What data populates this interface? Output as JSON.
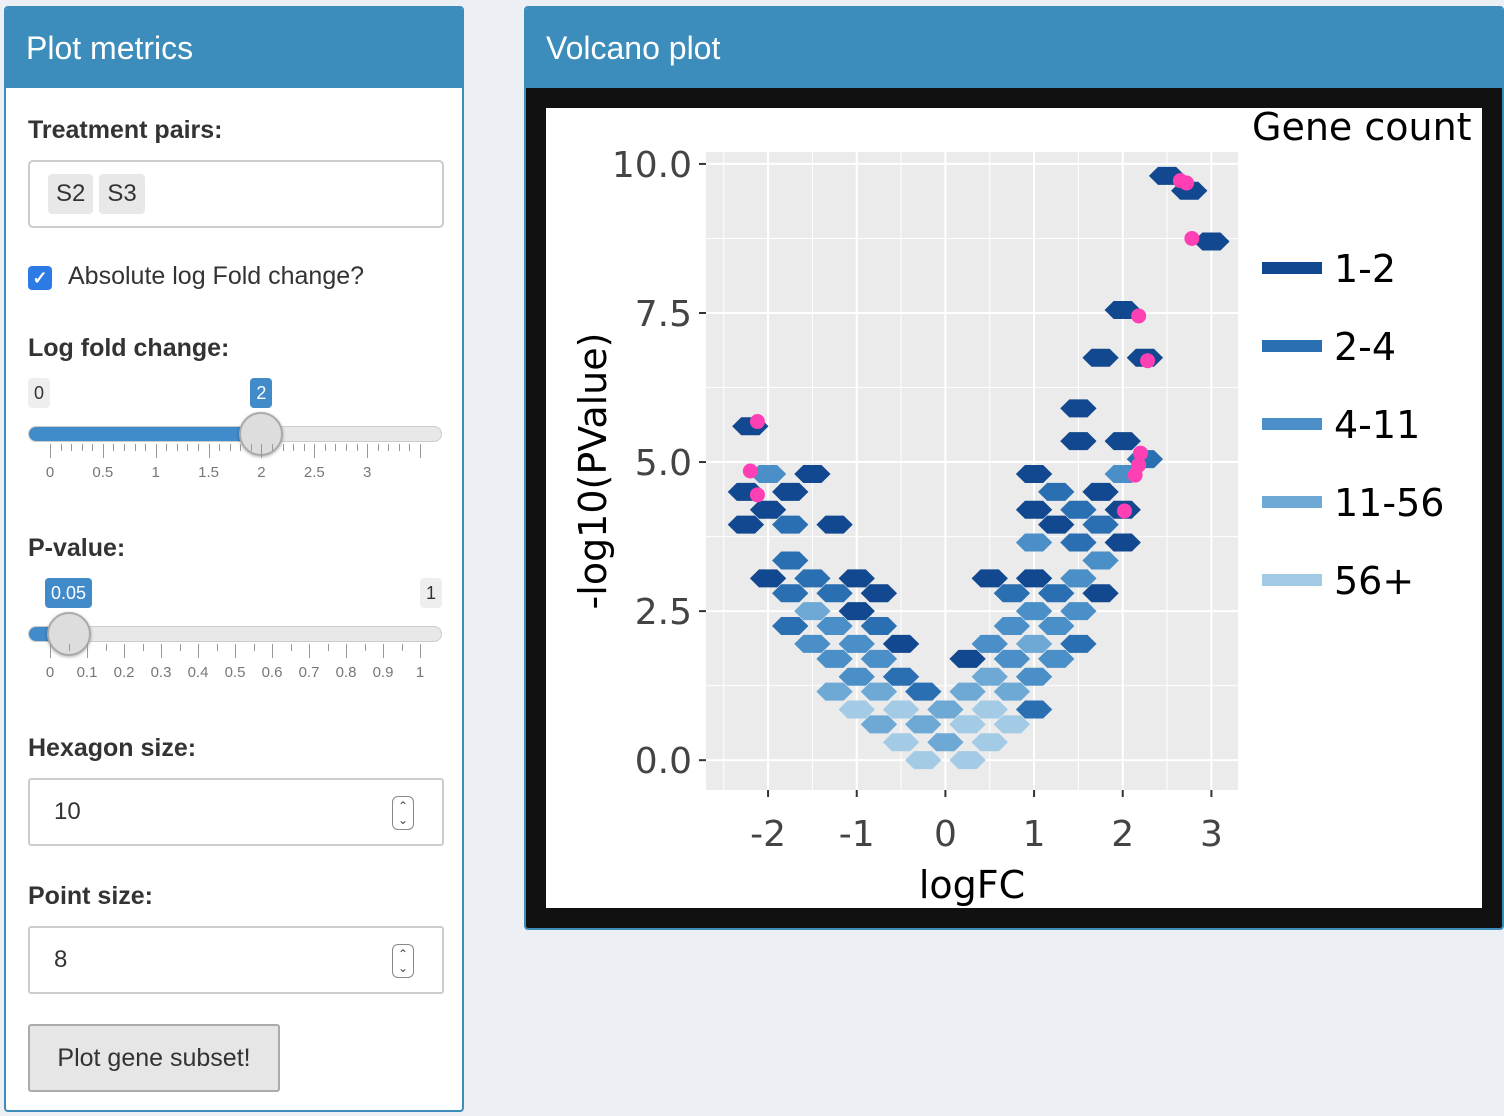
{
  "left_panel": {
    "title": "Plot metrics",
    "treatment_pairs": {
      "label": "Treatment pairs:",
      "selected": [
        "S2",
        "S3"
      ]
    },
    "absolute_lfc": {
      "label": "Absolute log Fold change?",
      "checked": true
    },
    "log_fold_change": {
      "label": "Log fold change:",
      "min_label": "0",
      "value_label": "2",
      "value": 2,
      "range": [
        0,
        3.5
      ],
      "tick_labels": [
        "0",
        "0.5",
        "1",
        "1.5",
        "2",
        "2.5",
        "3"
      ]
    },
    "p_value": {
      "label": "P-value:",
      "value_label": "0.05",
      "max_label": "1",
      "value": 0.05,
      "range": [
        0,
        1
      ],
      "tick_labels": [
        "0",
        "0.1",
        "0.2",
        "0.3",
        "0.4",
        "0.5",
        "0.6",
        "0.7",
        "0.8",
        "0.9",
        "1"
      ]
    },
    "hexagon_size": {
      "label": "Hexagon size:",
      "value": "10"
    },
    "point_size": {
      "label": "Point size:",
      "value": "8"
    },
    "plot_button": "Plot gene subset!"
  },
  "right_panel": {
    "title": "Volcano plot"
  },
  "chart_data": {
    "type": "hexbin-scatter",
    "xlabel": "logFC",
    "ylabel": "-log10(PValue)",
    "xlim": [
      -2.7,
      3.3
    ],
    "ylim": [
      -0.5,
      10.2
    ],
    "x_ticks": [
      "-2",
      "-1",
      "0",
      "1",
      "2",
      "3"
    ],
    "y_ticks": [
      "0.0",
      "2.5",
      "5.0",
      "7.5",
      "10.0"
    ],
    "grid": true,
    "legend": {
      "title": "Gene count",
      "placement": "right",
      "entries": [
        {
          "label": "1-2",
          "color": "#12488f"
        },
        {
          "label": "2-4",
          "color": "#2b6fb3"
        },
        {
          "label": "4-11",
          "color": "#4a8fc8"
        },
        {
          "label": "11-56",
          "color": "#6ea9d6"
        },
        {
          "label": "56+",
          "color": "#a4cbe6"
        }
      ]
    },
    "hexagons": [
      {
        "x": 2.5,
        "y": 9.8,
        "c": 0
      },
      {
        "x": 2.75,
        "y": 9.55,
        "c": 0
      },
      {
        "x": 3.0,
        "y": 8.7,
        "c": 0
      },
      {
        "x": 2.0,
        "y": 7.55,
        "c": 0
      },
      {
        "x": 1.75,
        "y": 6.75,
        "c": 0
      },
      {
        "x": 2.25,
        "y": 6.75,
        "c": 0
      },
      {
        "x": 1.5,
        "y": 5.9,
        "c": 0
      },
      {
        "x": 1.5,
        "y": 5.35,
        "c": 0
      },
      {
        "x": 2.0,
        "y": 5.35,
        "c": 0
      },
      {
        "x": 2.25,
        "y": 5.05,
        "c": 1
      },
      {
        "x": 2.0,
        "y": 4.8,
        "c": 2
      },
      {
        "x": 1.0,
        "y": 4.8,
        "c": 0
      },
      {
        "x": 1.25,
        "y": 4.5,
        "c": 1
      },
      {
        "x": 1.75,
        "y": 4.5,
        "c": 0
      },
      {
        "x": 1.0,
        "y": 4.2,
        "c": 0
      },
      {
        "x": 1.5,
        "y": 4.2,
        "c": 1
      },
      {
        "x": 2.0,
        "y": 4.2,
        "c": 0
      },
      {
        "x": 1.25,
        "y": 3.95,
        "c": 0
      },
      {
        "x": 1.75,
        "y": 3.95,
        "c": 1
      },
      {
        "x": 1.0,
        "y": 3.65,
        "c": 2
      },
      {
        "x": 1.5,
        "y": 3.65,
        "c": 1
      },
      {
        "x": 2.0,
        "y": 3.65,
        "c": 0
      },
      {
        "x": 1.75,
        "y": 3.35,
        "c": 2
      },
      {
        "x": 0.5,
        "y": 3.05,
        "c": 0
      },
      {
        "x": 1.0,
        "y": 3.05,
        "c": 0
      },
      {
        "x": 1.5,
        "y": 3.05,
        "c": 2
      },
      {
        "x": 0.75,
        "y": 2.8,
        "c": 1
      },
      {
        "x": 1.25,
        "y": 2.8,
        "c": 1
      },
      {
        "x": 1.75,
        "y": 2.8,
        "c": 0
      },
      {
        "x": 1.0,
        "y": 2.5,
        "c": 2
      },
      {
        "x": 1.5,
        "y": 2.5,
        "c": 2
      },
      {
        "x": 0.75,
        "y": 2.25,
        "c": 2
      },
      {
        "x": 1.25,
        "y": 2.25,
        "c": 2
      },
      {
        "x": 0.5,
        "y": 1.95,
        "c": 2
      },
      {
        "x": 1.0,
        "y": 1.95,
        "c": 3
      },
      {
        "x": 1.5,
        "y": 1.95,
        "c": 1
      },
      {
        "x": 0.25,
        "y": 1.7,
        "c": 0
      },
      {
        "x": 0.75,
        "y": 1.7,
        "c": 2
      },
      {
        "x": 1.25,
        "y": 1.7,
        "c": 2
      },
      {
        "x": 0.5,
        "y": 1.4,
        "c": 3
      },
      {
        "x": 1.0,
        "y": 1.4,
        "c": 2
      },
      {
        "x": 0.25,
        "y": 1.15,
        "c": 3
      },
      {
        "x": 0.75,
        "y": 1.15,
        "c": 3
      },
      {
        "x": -0.25,
        "y": 1.15,
        "c": 1
      },
      {
        "x": 0.0,
        "y": 0.85,
        "c": 3
      },
      {
        "x": 0.5,
        "y": 0.85,
        "c": 4
      },
      {
        "x": 1.0,
        "y": 0.85,
        "c": 1
      },
      {
        "x": 0.25,
        "y": 0.6,
        "c": 4
      },
      {
        "x": 0.75,
        "y": 0.6,
        "c": 4
      },
      {
        "x": 0.0,
        "y": 0.3,
        "c": 3
      },
      {
        "x": 0.5,
        "y": 0.3,
        "c": 4
      },
      {
        "x": 0.25,
        "y": 0.0,
        "c": 4
      },
      {
        "x": -0.25,
        "y": 0.0,
        "c": 4
      },
      {
        "x": -2.2,
        "y": 5.6,
        "c": 0
      },
      {
        "x": -2.0,
        "y": 4.8,
        "c": 2
      },
      {
        "x": -1.5,
        "y": 4.8,
        "c": 0
      },
      {
        "x": -2.25,
        "y": 4.5,
        "c": 0
      },
      {
        "x": -1.75,
        "y": 4.5,
        "c": 0
      },
      {
        "x": -2.0,
        "y": 4.2,
        "c": 0
      },
      {
        "x": -2.25,
        "y": 3.95,
        "c": 0
      },
      {
        "x": -1.75,
        "y": 3.95,
        "c": 1
      },
      {
        "x": -1.25,
        "y": 3.95,
        "c": 0
      },
      {
        "x": -1.75,
        "y": 3.35,
        "c": 1
      },
      {
        "x": -2.0,
        "y": 3.05,
        "c": 0
      },
      {
        "x": -1.5,
        "y": 3.05,
        "c": 1
      },
      {
        "x": -1.0,
        "y": 3.05,
        "c": 0
      },
      {
        "x": -1.75,
        "y": 2.8,
        "c": 1
      },
      {
        "x": -1.25,
        "y": 2.8,
        "c": 1
      },
      {
        "x": -0.75,
        "y": 2.8,
        "c": 0
      },
      {
        "x": -1.5,
        "y": 2.5,
        "c": 3
      },
      {
        "x": -1.0,
        "y": 2.5,
        "c": 0
      },
      {
        "x": -1.75,
        "y": 2.25,
        "c": 1
      },
      {
        "x": -1.25,
        "y": 2.25,
        "c": 2
      },
      {
        "x": -0.75,
        "y": 2.25,
        "c": 1
      },
      {
        "x": -1.5,
        "y": 1.95,
        "c": 2
      },
      {
        "x": -1.0,
        "y": 1.95,
        "c": 2
      },
      {
        "x": -0.5,
        "y": 1.95,
        "c": 0
      },
      {
        "x": -1.25,
        "y": 1.7,
        "c": 2
      },
      {
        "x": -0.75,
        "y": 1.7,
        "c": 2
      },
      {
        "x": -1.0,
        "y": 1.4,
        "c": 2
      },
      {
        "x": -0.5,
        "y": 1.4,
        "c": 1
      },
      {
        "x": -1.25,
        "y": 1.15,
        "c": 3
      },
      {
        "x": -0.75,
        "y": 1.15,
        "c": 3
      },
      {
        "x": -1.0,
        "y": 0.85,
        "c": 4
      },
      {
        "x": -0.5,
        "y": 0.85,
        "c": 4
      },
      {
        "x": -0.75,
        "y": 0.6,
        "c": 3
      },
      {
        "x": -0.25,
        "y": 0.6,
        "c": 3
      },
      {
        "x": -0.5,
        "y": 0.3,
        "c": 4
      }
    ],
    "highlighted_points": [
      {
        "x": 2.65,
        "y": 9.72
      },
      {
        "x": 2.72,
        "y": 9.68
      },
      {
        "x": 2.78,
        "y": 8.75
      },
      {
        "x": 2.18,
        "y": 7.45
      },
      {
        "x": 2.28,
        "y": 6.7
      },
      {
        "x": 2.2,
        "y": 5.15
      },
      {
        "x": 2.18,
        "y": 4.95
      },
      {
        "x": 2.14,
        "y": 4.78
      },
      {
        "x": 2.02,
        "y": 4.18
      },
      {
        "x": -2.12,
        "y": 5.68
      },
      {
        "x": -2.2,
        "y": 4.85
      },
      {
        "x": -2.12,
        "y": 4.45
      }
    ],
    "point_color": "#ff3fb4"
  }
}
